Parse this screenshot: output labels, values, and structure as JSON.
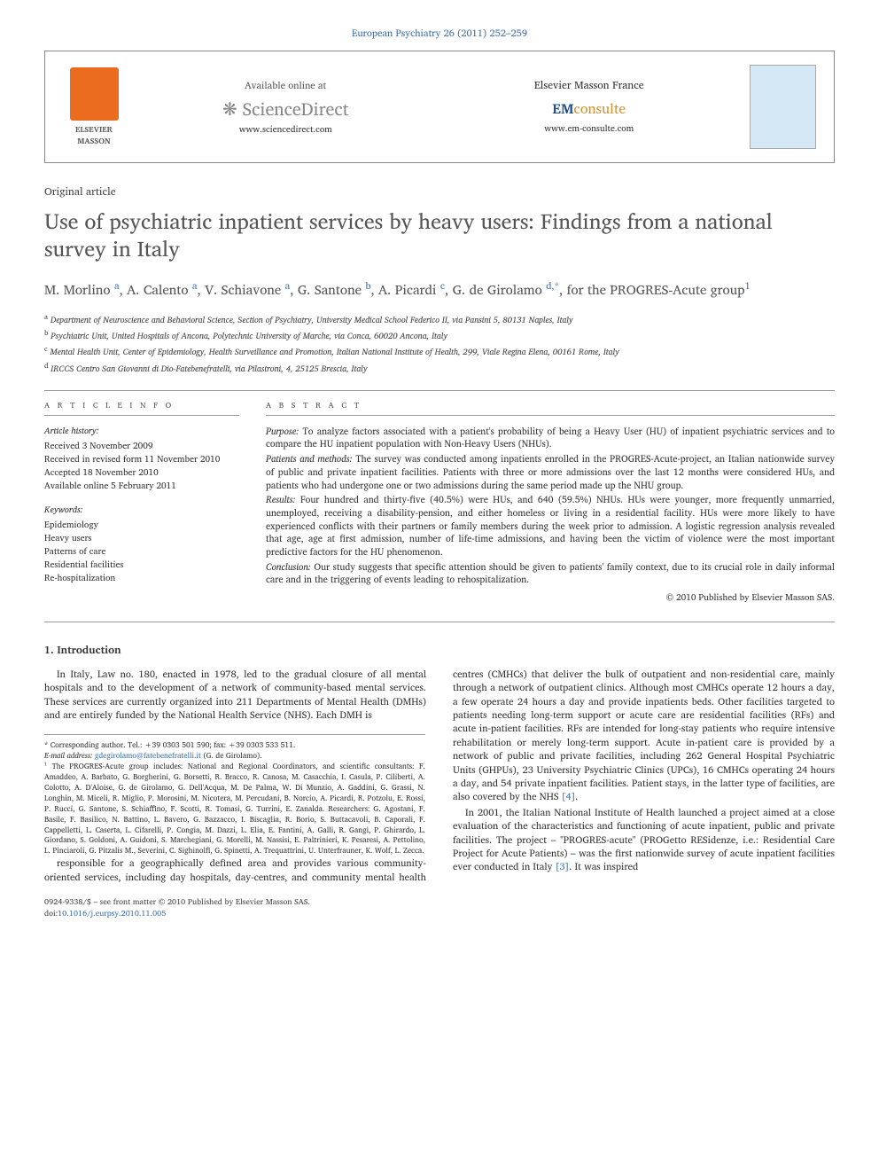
{
  "journal_header": "European Psychiatry 26 (2011) 252–259",
  "banner": {
    "elsevier_label": "ELSEVIER MASSON",
    "sd_available": "Available online at",
    "sd_name": "ScienceDirect",
    "sd_url": "www.sciencedirect.com",
    "em_title": "Elsevier Masson France",
    "em_em": "EM",
    "em_consulte": "consulte",
    "em_url": "www.em-consulte.com"
  },
  "article_type": "Original article",
  "title": "Use of psychiatric inpatient services by heavy users: Findings from a national survey in Italy",
  "authors_html": [
    {
      "name": "M. Morlino",
      "affil": "a"
    },
    {
      "name": "A. Calento",
      "affil": "a"
    },
    {
      "name": "V. Schiavone",
      "affil": "a"
    },
    {
      "name": "G. Santone",
      "affil": "b"
    },
    {
      "name": "A. Picardi",
      "affil": "c"
    },
    {
      "name": "G. de Girolamo",
      "affil": "d,*"
    }
  ],
  "author_group": ", for the PROGRES-Acute group",
  "author_group_sup": "1",
  "affiliations": [
    {
      "sup": "a",
      "text": "Department of Neuroscience and Behavioral Science, Section of Psychiatry, University Medical School Federico II, via Pansini 5, 80131 Naples, Italy"
    },
    {
      "sup": "b",
      "text": "Psychiatric Unit, United Hospitals of Ancona, Polytechnic University of Marche, via Conca, 60020 Ancona, Italy"
    },
    {
      "sup": "c",
      "text": "Mental Health Unit, Center of Epidemiology, Health Surveillance and Promotion, Italian National Institute of Health, 299, Viale Regina Elena, 00161 Rome, Italy"
    },
    {
      "sup": "d",
      "text": "IRCCS Centro San Giovanni di Dio-Fatebenefratelli, via Pilastroni, 4, 25125 Brescia, Italy"
    }
  ],
  "article_info": {
    "heading": "A R T I C L E   I N F O",
    "history_label": "Article history:",
    "history": [
      "Received 3 November 2009",
      "Received in revised form 11 November 2010",
      "Accepted 18 November 2010",
      "Available online 5 February 2011"
    ],
    "keywords_label": "Keywords:",
    "keywords": [
      "Epidemiology",
      "Heavy users",
      "Patterns of care",
      "Residential facilities",
      "Re-hospitalization"
    ]
  },
  "abstract": {
    "heading": "A B S T R A C T",
    "purpose_label": "Purpose:",
    "purpose": "To analyze factors associated with a patient's probability of being a Heavy User (HU) of inpatient psychiatric services and to compare the HU inpatient population with Non-Heavy Users (NHUs).",
    "methods_label": "Patients and methods:",
    "methods": "The survey was conducted among inpatients enrolled in the PROGRES-Acute-project, an Italian nationwide survey of public and private inpatient facilities. Patients with three or more admissions over the last 12 months were considered HUs, and patients who had undergone one or two admissions during the same period made up the NHU group.",
    "results_label": "Results:",
    "results": "Four hundred and thirty-five (40.5%) were HUs, and 640 (59.5%) NHUs. HUs were younger, more frequently unmarried, unemployed, receiving a disability-pension, and either homeless or living in a residential facility. HUs were more likely to have experienced conflicts with their partners or family members during the week prior to admission. A logistic regression analysis revealed that age, age at first admission, number of life-time admissions, and having been the victim of violence were the most important predictive factors for the HU phenomenon.",
    "conclusion_label": "Conclusion:",
    "conclusion": "Our study suggests that specific attention should be given to patients' family context, due to its crucial role in daily informal care and in the triggering of events leading to rehospitalization.",
    "copyright": "© 2010 Published by Elsevier Masson SAS."
  },
  "intro_heading": "1. Introduction",
  "intro_p1": "In Italy, Law no. 180, enacted in 1978, led to the gradual closure of all mental hospitals and to the development of a network of community-based mental services. These services are currently organized into 211 Departments of Mental Health (DMHs) and are entirely funded by the National Health Service (NHS). Each DMH is",
  "intro_p2_a": "responsible for a geographically defined area and provides various community-oriented services, including day hospitals, day-centres, and community mental health centres (CMHCs) that deliver the bulk of outpatient and non-residential care, mainly through a network of outpatient clinics. Although most CMHCs operate 12 hours a day, a few operate 24 hours a day and provide inpatients beds. Other facilities targeted to patients needing long-term support or acute care are residential facilities (RFs) and acute in-patient facilities. RFs are intended for long-stay patients who require intensive rehabilitation or merely long-term support. Acute in-patient care is provided by a network of public and private facilities, including 262 General Hospital Psychiatric Units (GHPUs), 23 University Psychiatric Clinics (UPCs), 16 CMHCs operating 24 hours a day, and 54 private inpatient facilities. Patient stays, in the latter type of facilities, are also covered by the NHS ",
  "intro_p2_cite": "[4]",
  "intro_p2_b": ".",
  "intro_p3_a": "In 2001, the Italian National Institute of Health launched a project aimed at a close evaluation of the characteristics and functioning of acute inpatient, public and private facilities. The project – \"PROGRES-acute\" (PROGetto RESidenze, i.e.: Residential Care Project for Acute Patients) – was the first nationwide survey of acute inpatient facilities ever conducted in Italy ",
  "intro_p3_cite": "[3]",
  "intro_p3_b": ". It was inspired",
  "footnotes": {
    "corresponding": "* Corresponding author. Tel.: +39 0303 501 590; fax: +39 0303 533 511.",
    "email_label": "E-mail address:",
    "email": "gdegirolamo@fatebenefratelli.it",
    "email_person": "(G. de Girolamo).",
    "group_note": "¹ The PROGRES-Acute group includes: National and Regional Coordinators, and scientific consultants: F. Amaddeo, A. Barbato, G. Borgherini, G. Borsetti, R. Bracco, R. Canosa, M. Casacchia, I. Casula, P. Ciliberti, A. Colotto, A. D'Aloise, G. de Girolamo, G. Dell'Acqua, M. De Palma, W. Di Munzio, A. Gaddini, G. Grassi, N. Longhin, M. Miceli, R. Miglio, P. Morosini, M. Nicotera, M. Percudani, B. Norcio, A. Picardi, R. Potzolu, E. Rossi, P. Rucci, G. Santone, S. Schiaffino, F. Scotti, R. Tomasi, G. Turrini, E. Zanalda. Researchers: G. Agostani, F. Basile, F. Basilico, N. Battino, L. Bavero, G. Bazzacco, I. Biscaglia, R. Borio, S. Buttacavoli, B. Caporali, F. Cappelletti, L. Caserta, L. Cifarelli, P. Congia, M. Dazzi, L. Elia, E. Fantini, A. Galli, R. Gangi, P. Ghirardo, L. Giordano, S. Goldoni, A. Guidoni, S. Marchegiani, G. Morelli, M. Nassisi, E. Paltrinieri, K. Pesaresi, A. Pettolino, L. Pinciaroli, G. Pitzalis M., Severini, C. Sighinolfi, G. Spinetti, A. Trequattrini, U. Unterfrauner, K. Wolf, L. Zecca."
  },
  "bottom": {
    "front_matter": "0924-9338/$ – see front matter © 2010 Published by Elsevier Masson SAS.",
    "doi_label": "doi:",
    "doi": "10.1016/j.eurpsy.2010.11.005"
  },
  "colors": {
    "link": "#3a6fb0",
    "title_gray": "#555555",
    "elsevier_orange": "#eb6b1f"
  }
}
